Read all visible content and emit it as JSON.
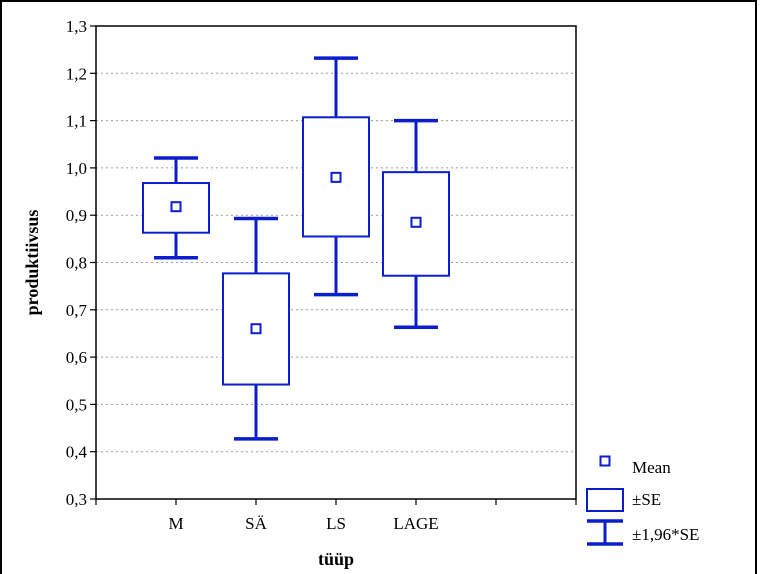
{
  "chart_data": {
    "type": "box",
    "xlabel": "tüüp",
    "ylabel": "produktiivsus",
    "categories": [
      "M",
      "SÄ",
      "LS",
      "LAGE"
    ],
    "mean": [
      0.918,
      0.66,
      0.98,
      0.885
    ],
    "se_low": [
      0.863,
      0.542,
      0.855,
      0.772
    ],
    "se_high": [
      0.968,
      0.777,
      1.107,
      0.991
    ],
    "ci_low": [
      0.81,
      0.427,
      0.732,
      0.663
    ],
    "ci_high": [
      1.021,
      0.893,
      1.232,
      1.1
    ],
    "ylim": [
      0.3,
      1.3
    ],
    "y_ticks": [
      "0,3",
      "0,4",
      "0,5",
      "0,6",
      "0,7",
      "0,8",
      "0,9",
      "1,0",
      "1,1",
      "1,2",
      "1,3"
    ],
    "grid": "horizontal dotted",
    "legend_position": "bottom-right",
    "legend": [
      {
        "symbol": "mean-square",
        "label": "Mean"
      },
      {
        "symbol": "se-box",
        "label": "±SE"
      },
      {
        "symbol": "ci-whisker",
        "label": "±1,96*SE"
      }
    ],
    "colors": {
      "series": "#0a1ecc",
      "grid": "#9a9a9a",
      "axis": "#000000"
    }
  }
}
